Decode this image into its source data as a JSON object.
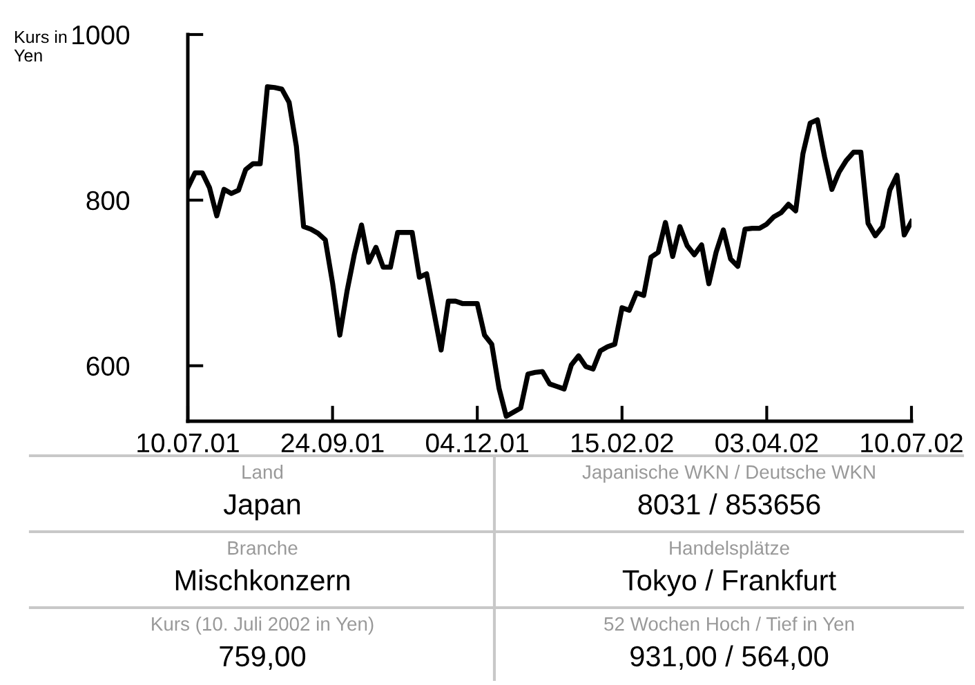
{
  "chart_data": {
    "type": "line",
    "ylabel": "Kurs in Yen",
    "categories": [
      "10.07.01",
      null,
      null,
      null,
      null,
      null,
      null,
      null,
      null,
      null,
      null,
      null,
      null,
      null,
      null,
      null,
      null,
      null,
      null,
      null,
      "24.09.01",
      null,
      null,
      null,
      null,
      null,
      null,
      null,
      null,
      null,
      null,
      null,
      null,
      null,
      null,
      null,
      null,
      null,
      null,
      null,
      "04.12.01",
      null,
      null,
      null,
      null,
      null,
      null,
      null,
      null,
      null,
      null,
      null,
      null,
      null,
      null,
      null,
      null,
      null,
      null,
      null,
      "15.02.02",
      null,
      null,
      null,
      null,
      null,
      null,
      null,
      null,
      null,
      null,
      null,
      null,
      null,
      null,
      null,
      null,
      null,
      null,
      null,
      "03.04.02",
      null,
      null,
      null,
      null,
      null,
      null,
      null,
      null,
      null,
      null,
      null,
      null,
      null,
      null,
      null,
      null,
      null,
      null,
      null,
      "10.07.02"
    ],
    "series": [
      {
        "color": "#000000",
        "values": [
          815,
          833,
          833,
          815,
          781,
          813,
          808,
          812,
          837,
          844,
          844,
          937,
          936,
          934,
          918,
          865,
          768,
          765,
          760,
          752,
          700,
          637,
          690,
          734,
          770,
          725,
          743,
          719,
          719,
          761,
          761,
          761,
          707,
          711,
          665,
          619,
          678,
          678,
          675,
          675,
          675,
          637,
          626,
          573,
          539,
          544,
          549,
          590,
          592,
          593,
          578,
          575,
          572,
          601,
          612,
          599,
          596,
          618,
          623,
          626,
          670,
          667,
          688,
          685,
          731,
          737,
          773,
          732,
          768,
          745,
          734,
          746,
          699,
          737,
          764,
          729,
          720,
          765,
          766,
          766,
          771,
          780,
          785,
          795,
          787,
          856,
          893,
          897,
          852,
          813,
          834,
          848,
          858,
          858,
          772,
          757,
          768,
          812,
          830,
          758,
          774
        ]
      }
    ],
    "ylim": [
      533,
      1000
    ],
    "yticks": [
      600,
      800,
      1000
    ],
    "grid": false,
    "marker": "none",
    "line_style": "solid",
    "legend": false,
    "annotations": [
      "Land",
      "Japan",
      "Japanische WKN / Deutsche WKN",
      "8031 / 853656",
      "Branche",
      "Mischkonzern",
      "Handelsplätze",
      "Tokyo / Frankfurt",
      "Kurs (10. Juli 2002 in Yen)",
      "759,00",
      "52 Wochen Hoch / Tief in Yen",
      "931,00 / 564,00"
    ]
  }
}
